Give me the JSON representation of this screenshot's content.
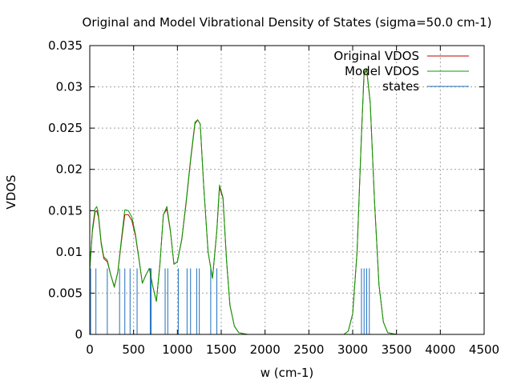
{
  "chart_data": {
    "type": "line",
    "title": "Original and Model Vibrational Density of States (sigma=50.0 cm-1)",
    "xlabel": "w (cm-1)",
    "ylabel": "VDOS",
    "xlim": [
      0,
      4500
    ],
    "ylim": [
      0,
      0.035
    ],
    "xticks": [
      0,
      500,
      1000,
      1500,
      2000,
      2500,
      3000,
      3500,
      4000,
      4500
    ],
    "yticks": [
      0,
      0.005,
      0.01,
      0.015,
      0.02,
      0.025,
      0.03,
      0.035
    ],
    "xtick_labels": [
      "0",
      "500",
      "1000",
      "1500",
      "2000",
      "2500",
      "3000",
      "3500",
      "4000",
      "4500"
    ],
    "ytick_labels": [
      "0",
      "0.005",
      "0.01",
      "0.015",
      "0.02",
      "0.025",
      "0.03",
      "0.035"
    ],
    "grid": true,
    "legend_position": "top-right",
    "series": [
      {
        "name": "Original VDOS",
        "color": "#c00000",
        "x": [
          0,
          30,
          60,
          80,
          100,
          130,
          160,
          200,
          240,
          280,
          320,
          360,
          400,
          440,
          480,
          520,
          560,
          600,
          640,
          680,
          720,
          760,
          800,
          840,
          880,
          920,
          960,
          1000,
          1050,
          1100,
          1150,
          1200,
          1230,
          1260,
          1300,
          1350,
          1400,
          1450,
          1480,
          1520,
          1560,
          1600,
          1650,
          1700,
          1800,
          2000,
          2500,
          2900,
          2950,
          3000,
          3050,
          3100,
          3130,
          3160,
          3200,
          3250,
          3300,
          3350,
          3400,
          3500,
          4000,
          4500
        ],
        "y": [
          0.008,
          0.0125,
          0.0148,
          0.015,
          0.0142,
          0.011,
          0.0092,
          0.0088,
          0.0072,
          0.0058,
          0.0075,
          0.0112,
          0.0145,
          0.0145,
          0.0138,
          0.012,
          0.0092,
          0.0062,
          0.0072,
          0.008,
          0.0058,
          0.004,
          0.0085,
          0.0145,
          0.0152,
          0.0125,
          0.0085,
          0.0088,
          0.0115,
          0.016,
          0.021,
          0.0255,
          0.026,
          0.0255,
          0.018,
          0.01,
          0.0068,
          0.0125,
          0.0178,
          0.0165,
          0.009,
          0.0035,
          0.001,
          0.0002,
          0,
          0,
          0,
          0,
          0.0004,
          0.0025,
          0.01,
          0.024,
          0.0315,
          0.032,
          0.028,
          0.016,
          0.006,
          0.0015,
          0.0002,
          0,
          0,
          0
        ]
      },
      {
        "name": "Model VDOS",
        "color": "#00a000",
        "x": [
          0,
          30,
          60,
          80,
          100,
          130,
          160,
          200,
          240,
          280,
          320,
          360,
          400,
          440,
          480,
          520,
          560,
          600,
          640,
          680,
          720,
          760,
          800,
          840,
          880,
          920,
          960,
          1000,
          1050,
          1100,
          1150,
          1200,
          1230,
          1260,
          1300,
          1350,
          1400,
          1450,
          1480,
          1520,
          1560,
          1600,
          1650,
          1700,
          1800,
          2000,
          2500,
          2900,
          2950,
          3000,
          3050,
          3100,
          3130,
          3160,
          3200,
          3250,
          3300,
          3350,
          3400,
          3500,
          4000,
          4500
        ],
        "y": [
          0.0078,
          0.0128,
          0.0152,
          0.0155,
          0.0145,
          0.0112,
          0.0094,
          0.009,
          0.0072,
          0.0057,
          0.0076,
          0.0115,
          0.0151,
          0.015,
          0.0142,
          0.0122,
          0.0093,
          0.0062,
          0.0072,
          0.008,
          0.0058,
          0.004,
          0.0085,
          0.0145,
          0.0155,
          0.0126,
          0.0085,
          0.0088,
          0.0116,
          0.0162,
          0.0212,
          0.0257,
          0.026,
          0.0255,
          0.018,
          0.01,
          0.0068,
          0.0126,
          0.0181,
          0.0166,
          0.009,
          0.0035,
          0.001,
          0.0002,
          0,
          0,
          0,
          0,
          0.0004,
          0.0025,
          0.0101,
          0.0242,
          0.0317,
          0.0322,
          0.0281,
          0.016,
          0.006,
          0.0015,
          0.0002,
          0,
          0,
          0
        ]
      },
      {
        "name": "states",
        "color": "#1f6fbf",
        "type": "impulse",
        "height": 0.008,
        "x": [
          10,
          70,
          200,
          340,
          400,
          460,
          540,
          690,
          700,
          860,
          890,
          1010,
          1110,
          1150,
          1220,
          1250,
          1380,
          1450,
          3100,
          3130,
          3160,
          3190
        ]
      }
    ]
  }
}
